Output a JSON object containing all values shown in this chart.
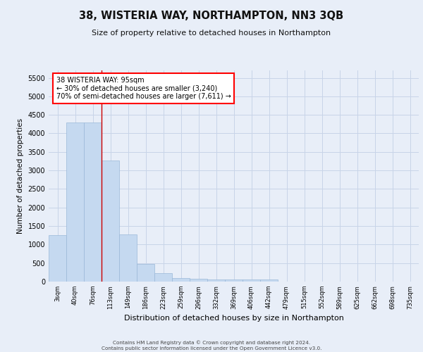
{
  "title": "38, WISTERIA WAY, NORTHAMPTON, NN3 3QB",
  "subtitle": "Size of property relative to detached houses in Northampton",
  "xlabel": "Distribution of detached houses by size in Northampton",
  "ylabel": "Number of detached properties",
  "categories": [
    "3sqm",
    "40sqm",
    "76sqm",
    "113sqm",
    "149sqm",
    "186sqm",
    "223sqm",
    "259sqm",
    "296sqm",
    "332sqm",
    "369sqm",
    "406sqm",
    "442sqm",
    "479sqm",
    "515sqm",
    "552sqm",
    "589sqm",
    "625sqm",
    "662sqm",
    "698sqm",
    "735sqm"
  ],
  "values": [
    1250,
    4300,
    4300,
    3270,
    1270,
    480,
    220,
    100,
    70,
    60,
    50,
    50,
    50,
    0,
    0,
    0,
    0,
    0,
    0,
    0,
    0
  ],
  "bar_color": "#c5d9f0",
  "bar_edge_color": "#9ab8d8",
  "grid_color": "#c8d4e8",
  "background_color": "#e8eef8",
  "plot_bg_color": "#e8eef8",
  "red_line_x": 2.5,
  "annotation_text_line1": "38 WISTERIA WAY: 95sqm",
  "annotation_text_line2": "← 30% of detached houses are smaller (3,240)",
  "annotation_text_line3": "70% of semi-detached houses are larger (7,611) →",
  "ylim": [
    0,
    5700
  ],
  "yticks": [
    0,
    500,
    1000,
    1500,
    2000,
    2500,
    3000,
    3500,
    4000,
    4500,
    5000,
    5500
  ],
  "footer_line1": "Contains HM Land Registry data © Crown copyright and database right 2024.",
  "footer_line2": "Contains public sector information licensed under the Open Government Licence v3.0."
}
